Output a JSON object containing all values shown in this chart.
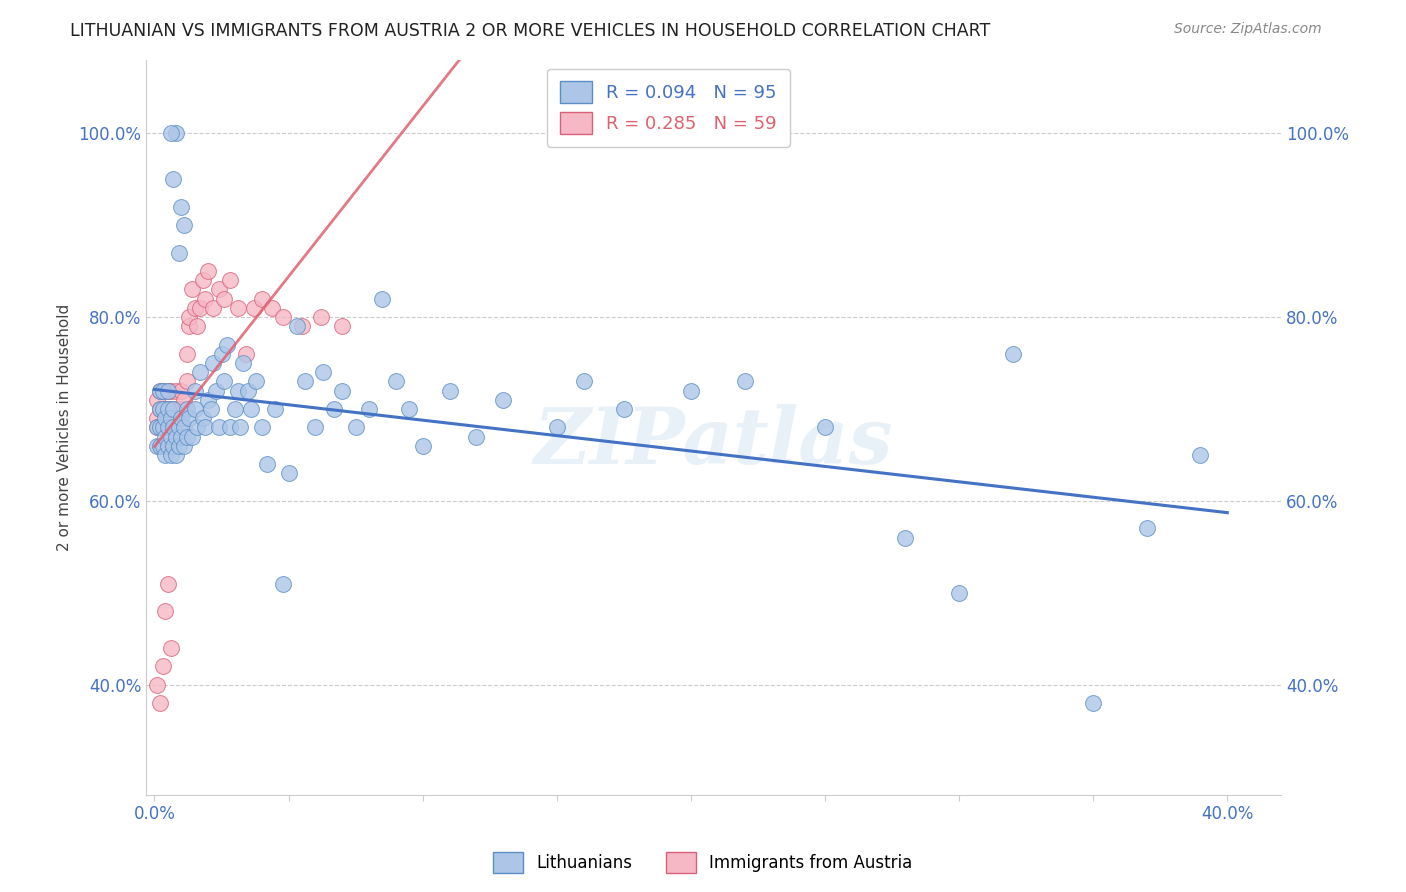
{
  "title": "LITHUANIAN VS IMMIGRANTS FROM AUSTRIA 2 OR MORE VEHICLES IN HOUSEHOLD CORRELATION CHART",
  "source": "Source: ZipAtlas.com",
  "ylabel": "2 or more Vehicles in Household",
  "yticks": [
    0.4,
    0.6,
    0.8,
    1.0
  ],
  "ytick_labels": [
    "40.0%",
    "60.0%",
    "80.0%",
    "100.0%"
  ],
  "legend_blue": {
    "R": 0.094,
    "N": 95,
    "label": "Lithuanians"
  },
  "legend_pink": {
    "R": 0.285,
    "N": 59,
    "label": "Immigrants from Austria"
  },
  "blue_color": "#adc6e8",
  "blue_edge_color": "#5b8ec4",
  "pink_color": "#f5b8c4",
  "pink_edge_color": "#d9607a",
  "blue_line_color": "#4472c4",
  "pink_line_color": "#e06070",
  "watermark": "ZIPatlas",
  "xlim": [
    -0.003,
    0.42
  ],
  "ylim": [
    0.28,
    1.08
  ],
  "blue_scatter_x": [
    0.001,
    0.001,
    0.002,
    0.002,
    0.002,
    0.002,
    0.003,
    0.003,
    0.003,
    0.003,
    0.004,
    0.004,
    0.004,
    0.005,
    0.005,
    0.005,
    0.005,
    0.006,
    0.006,
    0.006,
    0.007,
    0.007,
    0.007,
    0.008,
    0.008,
    0.009,
    0.009,
    0.01,
    0.01,
    0.011,
    0.011,
    0.012,
    0.012,
    0.013,
    0.014,
    0.015,
    0.015,
    0.016,
    0.017,
    0.018,
    0.019,
    0.02,
    0.021,
    0.022,
    0.023,
    0.024,
    0.025,
    0.026,
    0.027,
    0.028,
    0.03,
    0.031,
    0.032,
    0.033,
    0.035,
    0.036,
    0.038,
    0.04,
    0.042,
    0.045,
    0.048,
    0.05,
    0.053,
    0.056,
    0.06,
    0.063,
    0.067,
    0.07,
    0.075,
    0.08,
    0.085,
    0.09,
    0.095,
    0.1,
    0.11,
    0.12,
    0.13,
    0.15,
    0.16,
    0.175,
    0.2,
    0.22,
    0.25,
    0.28,
    0.3,
    0.32,
    0.35,
    0.37,
    0.39,
    0.008,
    0.006,
    0.007,
    0.009,
    0.01,
    0.011
  ],
  "blue_scatter_y": [
    0.68,
    0.66,
    0.7,
    0.68,
    0.66,
    0.72,
    0.68,
    0.66,
    0.7,
    0.72,
    0.65,
    0.67,
    0.69,
    0.66,
    0.68,
    0.7,
    0.72,
    0.65,
    0.67,
    0.69,
    0.66,
    0.68,
    0.7,
    0.65,
    0.67,
    0.66,
    0.68,
    0.67,
    0.69,
    0.66,
    0.68,
    0.67,
    0.7,
    0.69,
    0.67,
    0.7,
    0.72,
    0.68,
    0.74,
    0.69,
    0.68,
    0.71,
    0.7,
    0.75,
    0.72,
    0.68,
    0.76,
    0.73,
    0.77,
    0.68,
    0.7,
    0.72,
    0.68,
    0.75,
    0.72,
    0.7,
    0.73,
    0.68,
    0.64,
    0.7,
    0.51,
    0.63,
    0.79,
    0.73,
    0.68,
    0.74,
    0.7,
    0.72,
    0.68,
    0.7,
    0.82,
    0.73,
    0.7,
    0.66,
    0.72,
    0.67,
    0.71,
    0.68,
    0.73,
    0.7,
    0.72,
    0.73,
    0.68,
    0.56,
    0.5,
    0.76,
    0.38,
    0.57,
    0.65,
    1.0,
    1.0,
    0.95,
    0.87,
    0.92,
    0.9
  ],
  "pink_scatter_x": [
    0.001,
    0.001,
    0.001,
    0.002,
    0.002,
    0.002,
    0.002,
    0.003,
    0.003,
    0.003,
    0.003,
    0.004,
    0.004,
    0.004,
    0.004,
    0.005,
    0.005,
    0.005,
    0.005,
    0.006,
    0.006,
    0.006,
    0.006,
    0.007,
    0.007,
    0.007,
    0.008,
    0.008,
    0.008,
    0.009,
    0.009,
    0.01,
    0.01,
    0.01,
    0.011,
    0.012,
    0.012,
    0.013,
    0.013,
    0.014,
    0.015,
    0.016,
    0.017,
    0.018,
    0.019,
    0.02,
    0.022,
    0.024,
    0.026,
    0.028,
    0.031,
    0.034,
    0.037,
    0.04,
    0.044,
    0.048,
    0.055,
    0.062,
    0.07
  ],
  "pink_scatter_y": [
    0.69,
    0.71,
    0.68,
    0.7,
    0.72,
    0.68,
    0.66,
    0.7,
    0.68,
    0.72,
    0.7,
    0.68,
    0.7,
    0.68,
    0.66,
    0.7,
    0.68,
    0.66,
    0.72,
    0.68,
    0.7,
    0.66,
    0.72,
    0.68,
    0.7,
    0.66,
    0.7,
    0.68,
    0.72,
    0.68,
    0.7,
    0.72,
    0.68,
    0.7,
    0.71,
    0.73,
    0.76,
    0.79,
    0.8,
    0.83,
    0.81,
    0.79,
    0.81,
    0.84,
    0.82,
    0.85,
    0.81,
    0.83,
    0.82,
    0.84,
    0.81,
    0.76,
    0.81,
    0.82,
    0.81,
    0.8,
    0.79,
    0.8,
    0.79
  ],
  "pink_extra_x": [
    0.001,
    0.002,
    0.003,
    0.004,
    0.005,
    0.006
  ],
  "pink_extra_y": [
    0.4,
    0.38,
    0.42,
    0.48,
    0.51,
    0.44
  ]
}
